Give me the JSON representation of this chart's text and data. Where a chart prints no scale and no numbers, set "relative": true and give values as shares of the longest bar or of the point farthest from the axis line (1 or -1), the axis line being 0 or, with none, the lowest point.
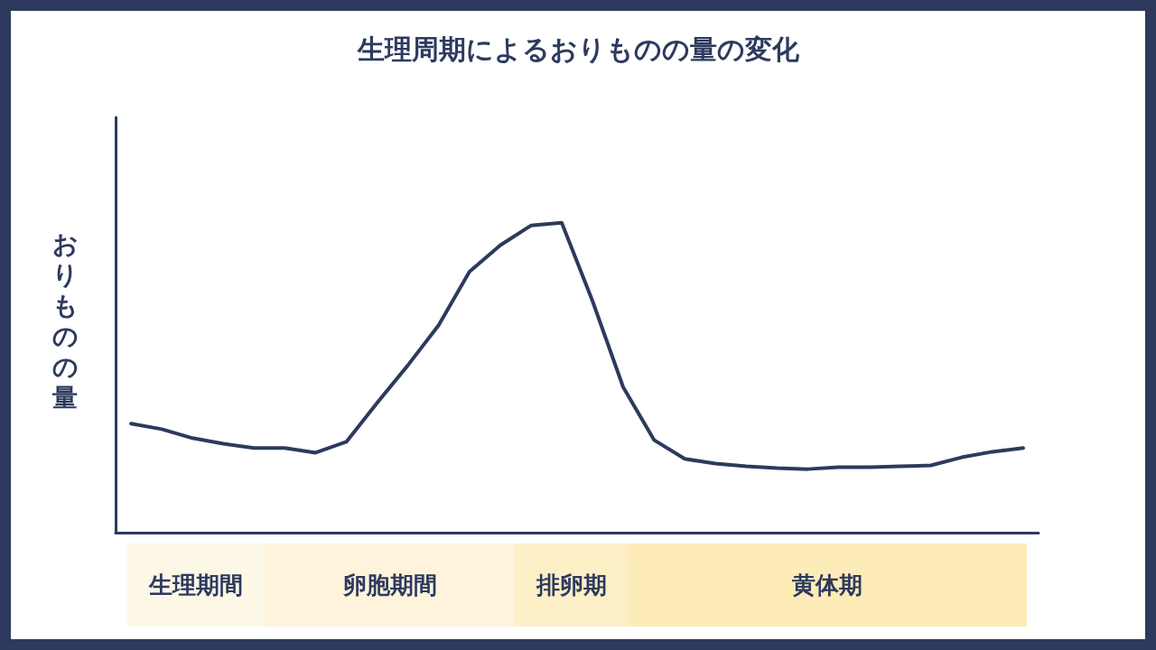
{
  "chart_data": {
    "type": "line",
    "title": "生理周期によるおりものの量の変化",
    "ylabel": "おりものの量",
    "relative": true,
    "marker": "none",
    "line_style": "solid",
    "categories": [
      null,
      null,
      null,
      null,
      null,
      null,
      null,
      null,
      null,
      null,
      null,
      null,
      null,
      null,
      null,
      null,
      null,
      null,
      null,
      null,
      null,
      null,
      null,
      null,
      null,
      null,
      null,
      null,
      null,
      null
    ],
    "series": [
      {
        "color": "#2d3a5e",
        "values": [
          0.352,
          0.334,
          0.305,
          0.287,
          0.273,
          0.273,
          0.258,
          0.293,
          0.419,
          0.54,
          0.669,
          0.842,
          0.927,
          0.991,
          1,
          0.748,
          0.469,
          0.299,
          0.238,
          0.223,
          0.214,
          0.208,
          0.205,
          0.211,
          0.211,
          0.214,
          0.217,
          0.243,
          0.261,
          0.273
        ]
      }
    ],
    "annotations": [
      "生理期間",
      "卵胞期間",
      "排卵期",
      "黄体期"
    ]
  }
}
